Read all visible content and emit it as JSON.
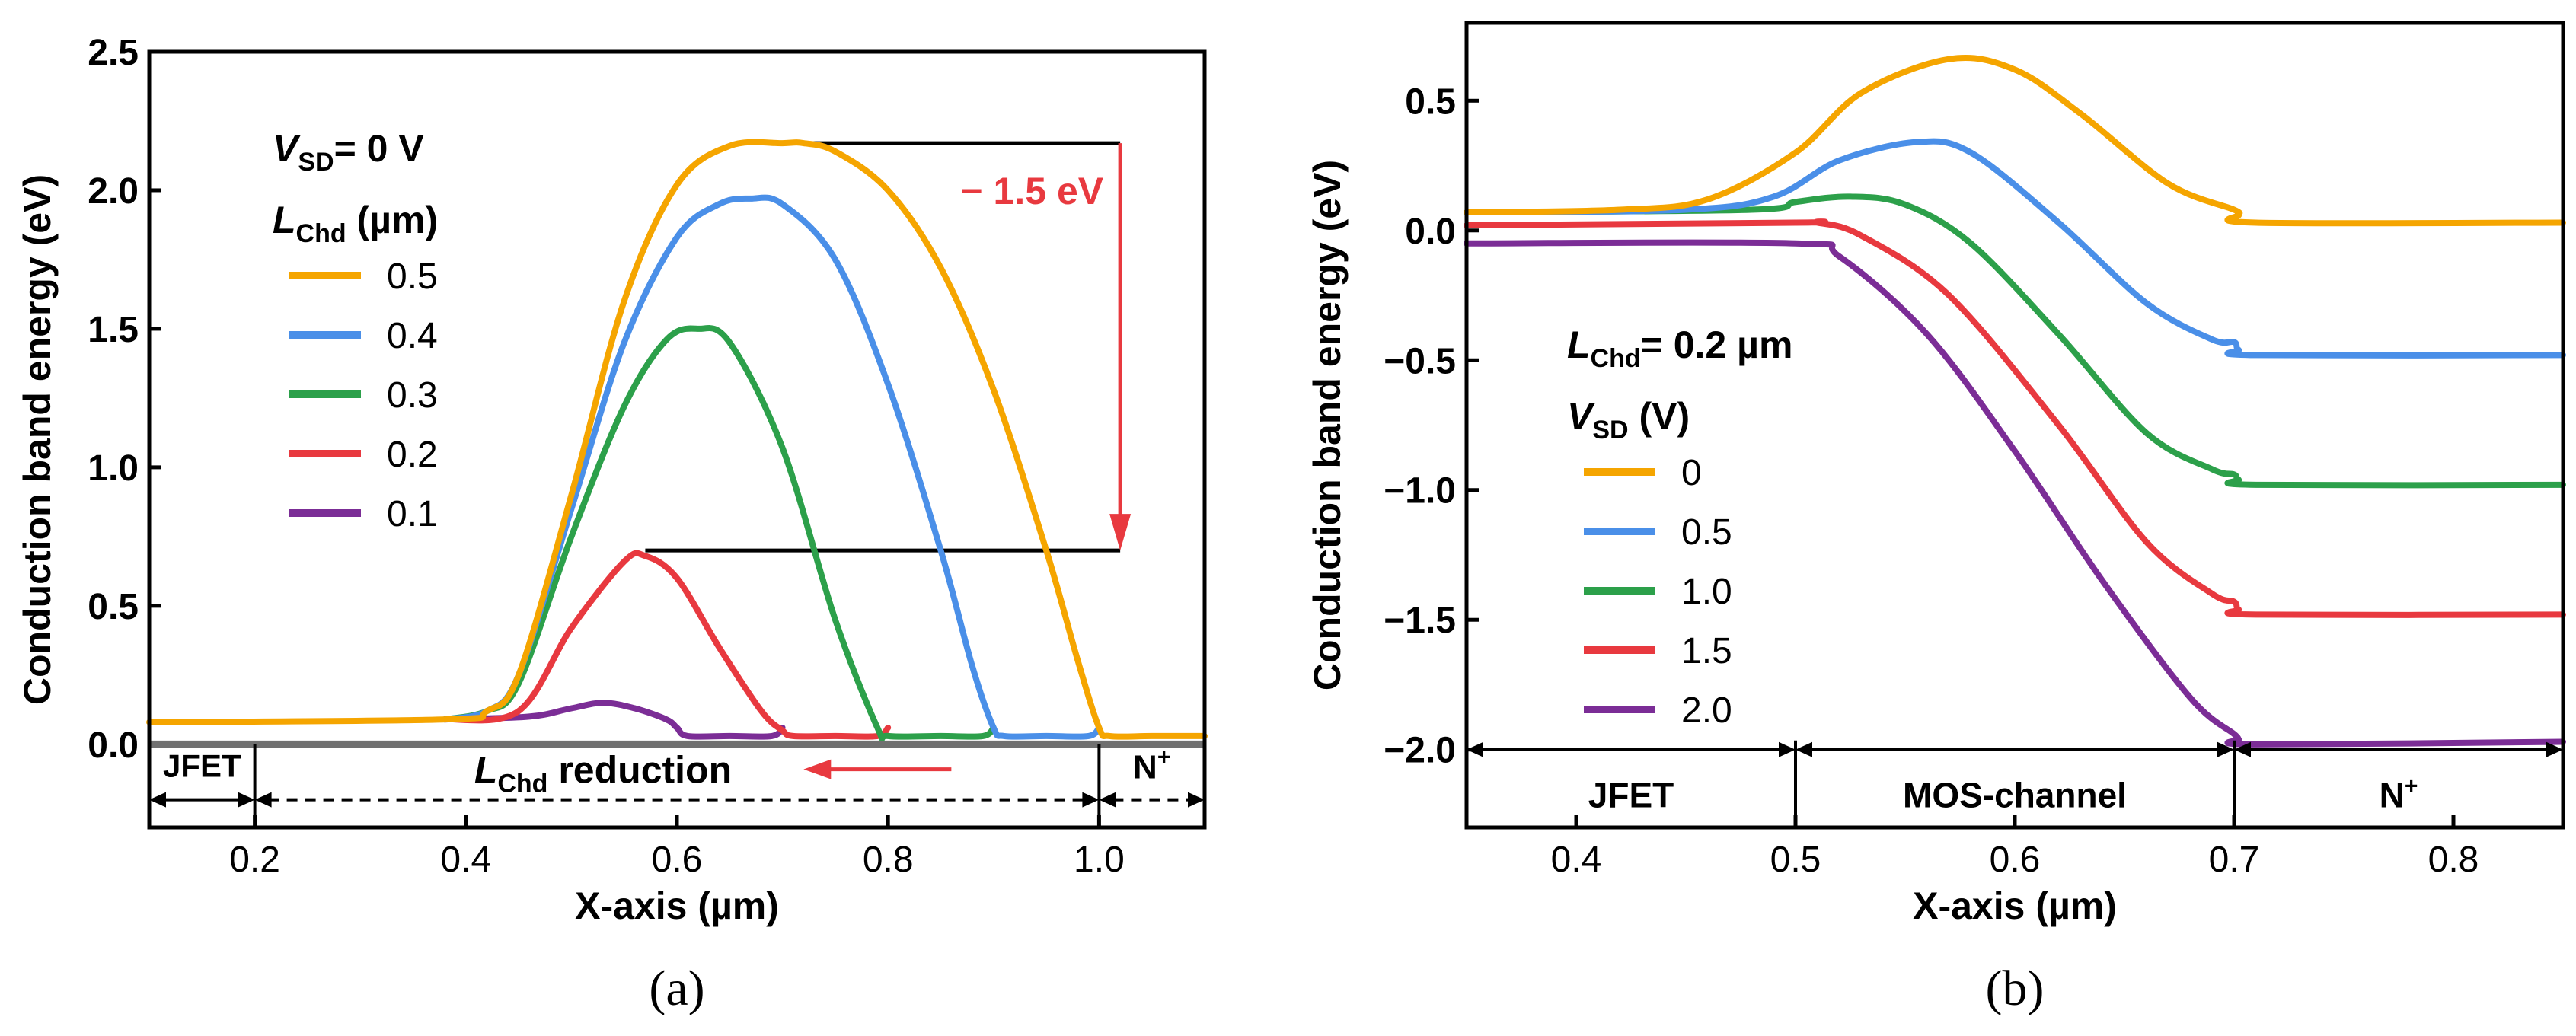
{
  "panels": [
    {
      "id": "a",
      "caption": "(a)",
      "chart_data": {
        "type": "line",
        "xlabel": "X-axis (µm)",
        "ylabel": "Conduction band energy (eV)",
        "xlim": [
          0.1,
          1.1
        ],
        "ylim": [
          -0.3,
          2.5
        ],
        "xticks": [
          0.2,
          0.4,
          0.6,
          0.8,
          1.0
        ],
        "xtick_labels": [
          "0.2",
          "0.4",
          "0.6",
          "0.8",
          "1.0"
        ],
        "yticks": [
          0.0,
          0.5,
          1.0,
          1.5,
          2.0,
          2.5
        ],
        "ytick_labels": [
          "0.0",
          "0.5",
          "1.0",
          "1.5",
          "2.0",
          "2.5"
        ],
        "legend": {
          "position": "top-left",
          "title_main": "V",
          "title_sub": "SD",
          "title_rest": "= 0 V",
          "subtitle_main": "L",
          "subtitle_sub": "Chd",
          "subtitle_rest": " (µm)"
        },
        "series": [
          {
            "name": "0.5",
            "color": "#F5A500",
            "x": [
              0.1,
              0.38,
              0.42,
              0.45,
              0.5,
              0.55,
              0.6,
              0.65,
              0.7,
              0.72,
              0.75,
              0.8,
              0.85,
              0.9,
              0.95,
              0.98,
              1.0,
              1.01,
              1.05,
              1.1
            ],
            "y": [
              0.08,
              0.09,
              0.12,
              0.25,
              0.9,
              1.6,
              2.02,
              2.16,
              2.17,
              2.17,
              2.14,
              2.0,
              1.72,
              1.28,
              0.7,
              0.3,
              0.06,
              0.03,
              0.03,
              0.03
            ]
          },
          {
            "name": "0.4",
            "color": "#4A8FE8",
            "x": [
              0.38,
              0.42,
              0.45,
              0.5,
              0.55,
              0.6,
              0.64,
              0.67,
              0.7,
              0.75,
              0.8,
              0.85,
              0.88,
              0.9,
              0.91,
              0.95,
              0.99,
              1.0
            ],
            "y": [
              0.09,
              0.12,
              0.25,
              0.85,
              1.45,
              1.83,
              1.95,
              1.97,
              1.95,
              1.75,
              1.3,
              0.7,
              0.28,
              0.06,
              0.03,
              0.03,
              0.03,
              0.06
            ]
          },
          {
            "name": "0.3",
            "color": "#2CA04A",
            "x": [
              0.38,
              0.42,
              0.45,
              0.5,
              0.55,
              0.59,
              0.62,
              0.65,
              0.7,
              0.75,
              0.79,
              0.8,
              0.85,
              0.89,
              0.9
            ],
            "y": [
              0.09,
              0.12,
              0.22,
              0.75,
              1.22,
              1.46,
              1.5,
              1.45,
              1.07,
              0.45,
              0.06,
              0.03,
              0.03,
              0.03,
              0.06
            ]
          },
          {
            "name": "0.2",
            "color": "#E8393F",
            "x": [
              0.38,
              0.45,
              0.5,
              0.55,
              0.57,
              0.6,
              0.64,
              0.68,
              0.7,
              0.71,
              0.75,
              0.79,
              0.8
            ],
            "y": [
              0.09,
              0.12,
              0.42,
              0.66,
              0.68,
              0.6,
              0.35,
              0.12,
              0.05,
              0.03,
              0.03,
              0.03,
              0.06
            ]
          },
          {
            "name": "0.1",
            "color": "#7B2D96",
            "x": [
              0.38,
              0.46,
              0.5,
              0.53,
              0.56,
              0.59,
              0.6,
              0.61,
              0.65,
              0.69,
              0.7
            ],
            "y": [
              0.09,
              0.1,
              0.13,
              0.15,
              0.13,
              0.09,
              0.06,
              0.03,
              0.03,
              0.03,
              0.06
            ]
          }
        ],
        "baseline": {
          "y": 0.0,
          "color": "#707070"
        },
        "annotations": {
          "drop_label": "− 1.5 eV",
          "drop_from_y": 2.17,
          "drop_to_y": 0.7,
          "drop_x": 1.02,
          "upper_line_x": [
            0.71,
            1.02
          ],
          "lower_line_x": [
            0.57,
            1.02
          ],
          "arrow_color": "#E8393F",
          "region_reduction_label_main": "L",
          "region_reduction_label_sub": "Chd",
          "region_reduction_label_rest": " reduction",
          "region_jfet_label": "JFET",
          "region_nplus_label_main": "N",
          "region_nplus_label_sup": "+",
          "region_bounds_x": [
            0.1,
            0.2,
            1.0,
            1.1
          ],
          "short_arrow_x": [
            0.86,
            0.72
          ],
          "short_arrow_y": -0.09
        }
      }
    },
    {
      "id": "b",
      "caption": "(b)",
      "chart_data": {
        "type": "line",
        "xlabel": "X-axis (µm)",
        "ylabel": "Conduction band energy (eV)",
        "xlim": [
          0.35,
          0.85
        ],
        "ylim": [
          -2.3,
          0.8
        ],
        "xticks": [
          0.4,
          0.5,
          0.6,
          0.7,
          0.8
        ],
        "xtick_labels": [
          "0.4",
          "0.5",
          "0.6",
          "0.7",
          "0.8"
        ],
        "yticks": [
          0.5,
          0.0,
          -0.5,
          -1.0,
          -1.5,
          -2.0
        ],
        "ytick_labels": [
          "0.5",
          "0.0",
          "−0.5",
          "−1.0",
          "−1.5",
          "−2.0"
        ],
        "legend": {
          "position": "middle-left",
          "title_main": "L",
          "title_sub": "Chd",
          "title_rest": "= 0.2 µm",
          "subtitle_main": "V",
          "subtitle_sub": "SD",
          "subtitle_rest": " (V)"
        },
        "series": [
          {
            "name": "0",
            "color": "#F5A500",
            "x": [
              0.35,
              0.42,
              0.46,
              0.5,
              0.53,
              0.57,
              0.6,
              0.63,
              0.67,
              0.7,
              0.702,
              0.71,
              0.85
            ],
            "y": [
              0.07,
              0.08,
              0.12,
              0.3,
              0.53,
              0.66,
              0.62,
              0.45,
              0.18,
              0.08,
              0.06,
              0.03,
              0.03
            ]
          },
          {
            "name": "0.5",
            "color": "#4A8FE8",
            "x": [
              0.35,
              0.45,
              0.49,
              0.52,
              0.555,
              0.58,
              0.62,
              0.66,
              0.69,
              0.7,
              0.702,
              0.71,
              0.85
            ],
            "y": [
              0.07,
              0.08,
              0.13,
              0.27,
              0.34,
              0.3,
              0.03,
              -0.28,
              -0.42,
              -0.43,
              -0.46,
              -0.48,
              -0.48
            ]
          },
          {
            "name": "1.0",
            "color": "#2CA04A",
            "x": [
              0.35,
              0.48,
              0.5,
              0.525,
              0.55,
              0.58,
              0.62,
              0.66,
              0.69,
              0.7,
              0.702,
              0.71,
              0.85
            ],
            "y": [
              0.07,
              0.08,
              0.11,
              0.13,
              0.1,
              -0.05,
              -0.4,
              -0.78,
              -0.92,
              -0.94,
              -0.96,
              -0.98,
              -0.98
            ]
          },
          {
            "name": "1.5",
            "color": "#E8393F",
            "x": [
              0.35,
              0.5,
              0.51,
              0.53,
              0.57,
              0.62,
              0.66,
              0.69,
              0.7,
              0.702,
              0.71,
              0.85
            ],
            "y": [
              0.02,
              0.03,
              0.03,
              -0.02,
              -0.25,
              -0.75,
              -1.2,
              -1.4,
              -1.43,
              -1.46,
              -1.48,
              -1.48
            ]
          },
          {
            "name": "2.0",
            "color": "#7B2D96",
            "x": [
              0.35,
              0.5,
              0.52,
              0.56,
              0.6,
              0.64,
              0.68,
              0.7,
              0.702,
              0.71,
              0.85
            ],
            "y": [
              -0.05,
              -0.05,
              -0.1,
              -0.4,
              -0.85,
              -1.35,
              -1.8,
              -1.94,
              -1.96,
              -1.98,
              -1.97
            ]
          }
        ],
        "annotations": {
          "region_y": -2.0,
          "region_bounds_x": [
            0.35,
            0.5,
            0.7,
            0.85
          ],
          "region_jfet_label": "JFET",
          "region_mos_label": "MOS-channel",
          "region_nplus_label_main": "N",
          "region_nplus_label_sup": "+"
        }
      }
    }
  ]
}
